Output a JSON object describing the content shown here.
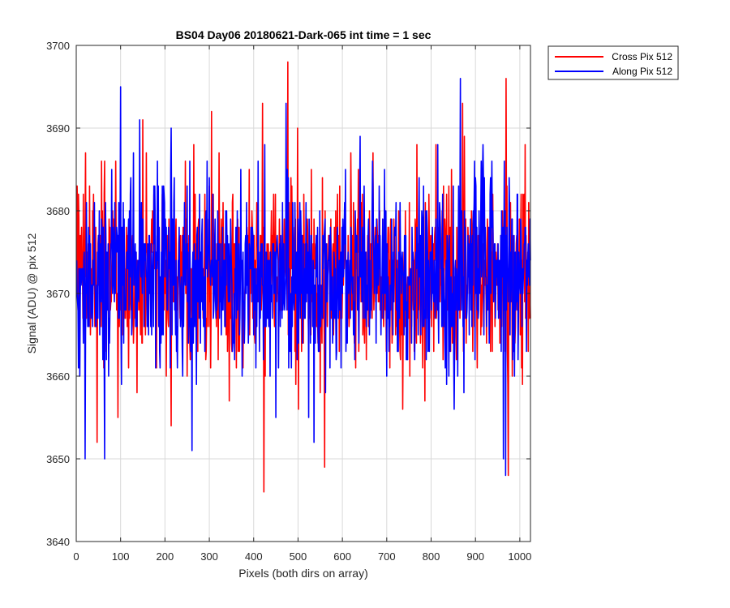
{
  "chart_data": {
    "type": "line",
    "title": "BS04 Day06 20180621-Dark-065 int time = 1 sec",
    "xlabel": "Pixels (both dirs on array)",
    "ylabel": "Signal (ADU) @ pix 512",
    "xlim": [
      0,
      1024
    ],
    "ylim": [
      3640,
      3700
    ],
    "xticks": [
      0,
      100,
      200,
      300,
      400,
      500,
      600,
      700,
      800,
      900,
      1000
    ],
    "yticks": [
      3640,
      3650,
      3660,
      3670,
      3680,
      3690,
      3700
    ],
    "grid": true,
    "legend_position": "outside-top-right",
    "noise_mean": 3672,
    "series": [
      {
        "name": "Cross Pix 512",
        "color": "#ff0000",
        "noise_std": 5.5,
        "spikes": [
          [
            21,
            3687
          ],
          [
            47,
            3652
          ],
          [
            94,
            3655
          ],
          [
            150,
            3691
          ],
          [
            158,
            3687
          ],
          [
            214,
            3654
          ],
          [
            305,
            3692
          ],
          [
            420,
            3693
          ],
          [
            423,
            3646
          ],
          [
            477,
            3698
          ],
          [
            499,
            3690
          ],
          [
            560,
            3649
          ],
          [
            871,
            3693
          ],
          [
            969,
            3696
          ],
          [
            974,
            3648
          ],
          [
            1012,
            3688
          ]
        ]
      },
      {
        "name": "Along Pix 512",
        "color": "#0000ff",
        "noise_std": 5.5,
        "spikes": [
          [
            5,
            3661
          ],
          [
            20,
            3650
          ],
          [
            64,
            3650
          ],
          [
            100,
            3695
          ],
          [
            143,
            3691
          ],
          [
            214,
            3690
          ],
          [
            261,
            3651
          ],
          [
            425,
            3688
          ],
          [
            473,
            3693
          ],
          [
            536,
            3652
          ],
          [
            640,
            3689
          ],
          [
            866,
            3696
          ],
          [
            912,
            3680
          ],
          [
            963,
            3650
          ],
          [
            968,
            3648
          ]
        ]
      }
    ]
  }
}
